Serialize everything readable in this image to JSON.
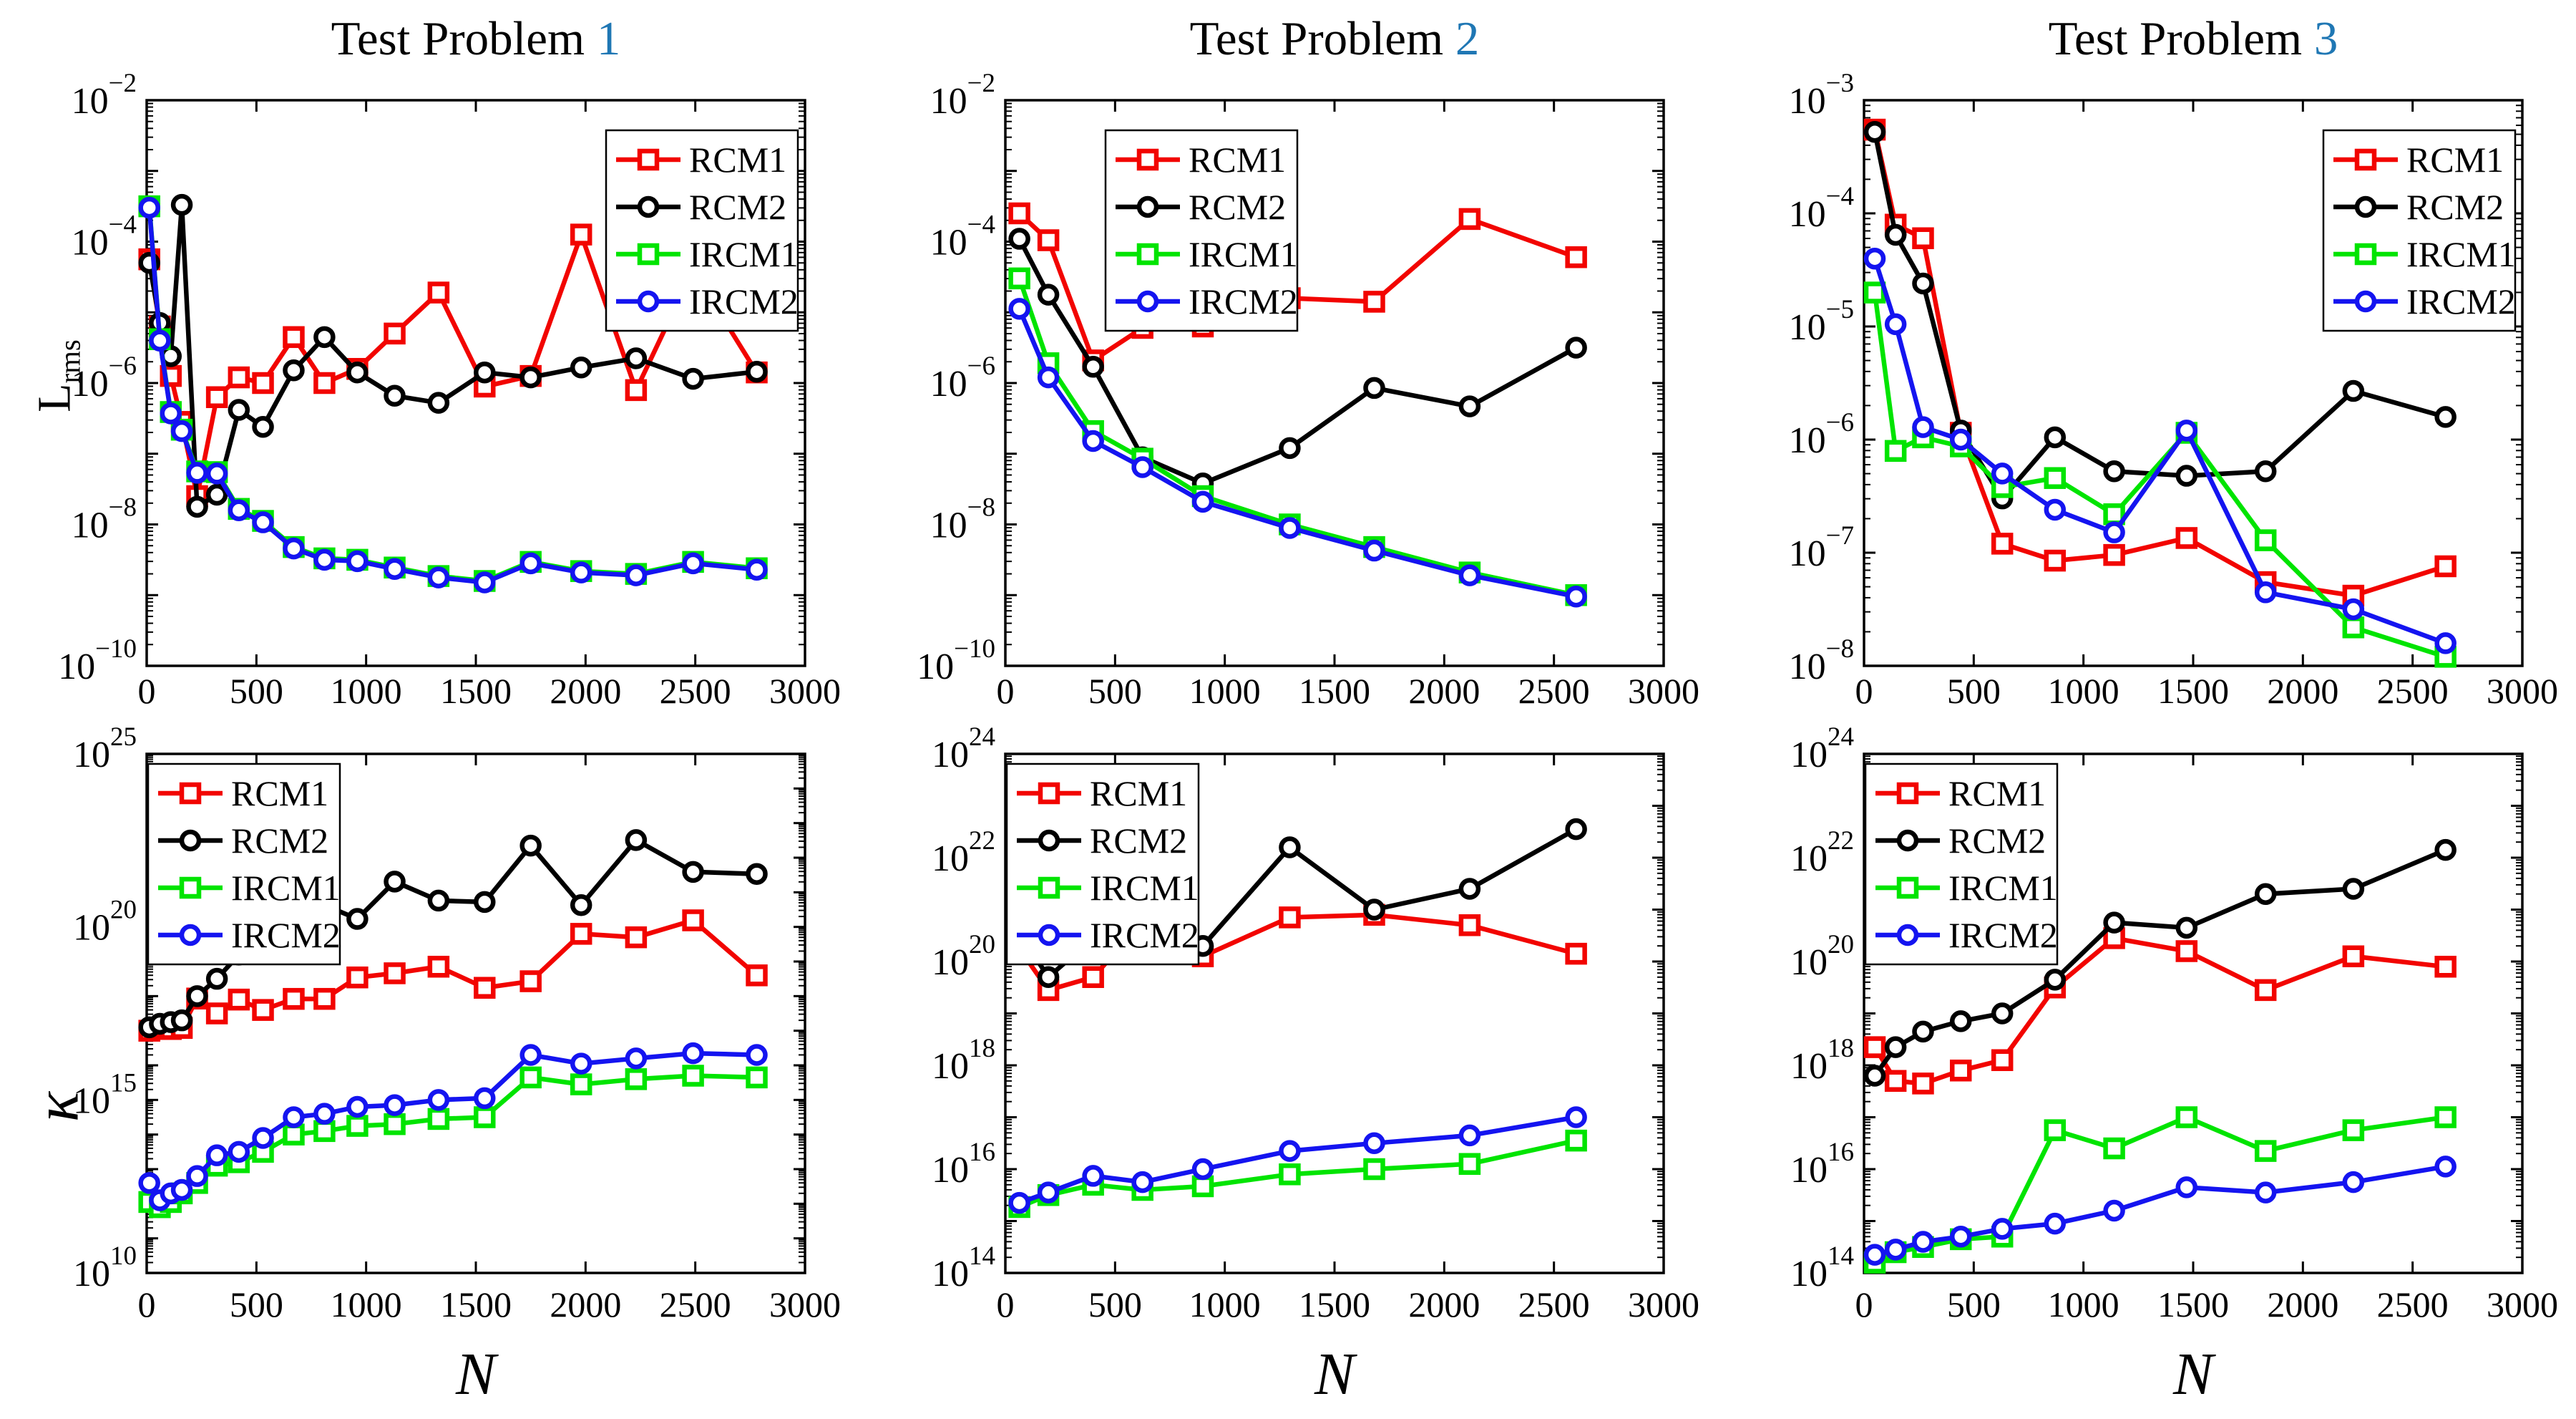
{
  "page": {
    "background": "#ffffff"
  },
  "styles": {
    "axis_color": "#000000",
    "title_accent_color": "#1f77b4",
    "series_colors": {
      "RCM1": "#f20400",
      "RCM2": "#000000",
      "IRCM1": "#00e400",
      "IRCM2": "#1414f0"
    },
    "series_markers": {
      "RCM1": "square",
      "RCM2": "circle",
      "IRCM1": "square",
      "IRCM2": "circle"
    }
  },
  "legend_labels": [
    "RCM1",
    "RCM2",
    "IRCM1",
    "IRCM2"
  ],
  "chart_data": [
    {
      "id": "test-problem-1-lrms",
      "type": "line",
      "title_prefix": "Test Problem ",
      "title_number": "1",
      "ylabel_base": "L",
      "ylabel_sub": "rms",
      "xlabel": "",
      "grid": false,
      "xlim": [
        0,
        3000
      ],
      "x_ticks": [
        0,
        500,
        1000,
        1500,
        2000,
        2500,
        3000
      ],
      "ylim_exp": [
        -10,
        -2
      ],
      "y_labeled_exps": [
        -2,
        -4,
        -6,
        -8,
        -10
      ],
      "legend_pos": "upper right",
      "x": [
        12,
        60,
        110,
        160,
        230,
        320,
        420,
        530,
        670,
        810,
        960,
        1130,
        1330,
        1540,
        1750,
        1980,
        2230,
        2490,
        2780
      ],
      "series": [
        {
          "name": "RCM1",
          "log10_y": [
            -4.25,
            -5.2,
            -5.9,
            -6.55,
            -7.6,
            -6.2,
            -5.92,
            -6.0,
            -5.35,
            -6.0,
            -5.8,
            -5.3,
            -4.72,
            -6.05,
            -5.9,
            -3.9,
            -6.1,
            -4.4,
            -5.85
          ]
        },
        {
          "name": "RCM2",
          "log10_y": [
            -4.3,
            -5.15,
            -5.62,
            -3.48,
            -7.75,
            -7.58,
            -6.38,
            -6.62,
            -5.82,
            -5.35,
            -5.85,
            -6.18,
            -6.28,
            -5.85,
            -5.92,
            -5.78,
            -5.65,
            -5.94,
            -5.84
          ]
        },
        {
          "name": "IRCM1",
          "log10_y": [
            -3.5,
            -5.38,
            -6.41,
            -6.66,
            -7.25,
            -7.26,
            -7.78,
            -7.95,
            -8.32,
            -8.48,
            -8.5,
            -8.61,
            -8.73,
            -8.8,
            -8.53,
            -8.66,
            -8.7,
            -8.53,
            -8.62
          ]
        },
        {
          "name": "IRCM2",
          "log10_y": [
            -3.52,
            -5.4,
            -6.43,
            -6.68,
            -7.27,
            -7.28,
            -7.8,
            -7.97,
            -8.34,
            -8.5,
            -8.52,
            -8.63,
            -8.75,
            -8.82,
            -8.55,
            -8.68,
            -8.72,
            -8.55,
            -8.64
          ]
        }
      ]
    },
    {
      "id": "test-problem-2-lrms",
      "type": "line",
      "title_prefix": "Test Problem ",
      "title_number": "2",
      "ylabel_base": "",
      "ylabel_sub": "",
      "xlabel": "",
      "grid": false,
      "xlim": [
        0,
        3000
      ],
      "x_ticks": [
        0,
        500,
        1000,
        1500,
        2000,
        2500,
        3000
      ],
      "ylim_exp": [
        -10,
        -2
      ],
      "y_labeled_exps": [
        -2,
        -4,
        -6,
        -8,
        -10
      ],
      "legend_pos": "upper left inset",
      "x": [
        64,
        196,
        400,
        625,
        900,
        1296,
        1681,
        2116,
        2601
      ],
      "series": [
        {
          "name": "RCM1",
          "log10_y": [
            -3.6,
            -3.98,
            -5.68,
            -5.22,
            -5.2,
            -4.8,
            -4.85,
            -3.68,
            -4.22
          ]
        },
        {
          "name": "RCM2",
          "log10_y": [
            -3.96,
            -4.75,
            -5.77,
            -7.05,
            -7.42,
            -6.92,
            -6.07,
            -6.33,
            -5.5
          ]
        },
        {
          "name": "IRCM1",
          "log10_y": [
            -4.52,
            -5.72,
            -6.68,
            -7.07,
            -7.6,
            -8.0,
            -8.32,
            -8.68,
            -9.0
          ]
        },
        {
          "name": "IRCM2",
          "log10_y": [
            -4.95,
            -5.92,
            -6.82,
            -7.19,
            -7.68,
            -8.05,
            -8.37,
            -8.72,
            -9.02
          ]
        }
      ]
    },
    {
      "id": "test-problem-3-lrms",
      "type": "line",
      "title_prefix": "Test Problem ",
      "title_number": "3",
      "ylabel_base": "",
      "ylabel_sub": "",
      "xlabel": "",
      "grid": false,
      "xlim": [
        0,
        3000
      ],
      "x_ticks": [
        0,
        500,
        1000,
        1500,
        2000,
        2500,
        3000
      ],
      "ylim_exp": [
        -8,
        -3
      ],
      "y_labeled_exps": [
        -3,
        -4,
        -5,
        -6,
        -7,
        -8
      ],
      "legend_pos": "upper right",
      "x": [
        49,
        144,
        269,
        441,
        630,
        870,
        1140,
        1470,
        1830,
        2230,
        2650
      ],
      "series": [
        {
          "name": "RCM1",
          "log10_y": [
            -3.26,
            -4.1,
            -4.22,
            -5.94,
            -6.92,
            -7.07,
            -7.02,
            -6.87,
            -7.26,
            -7.38,
            -7.12
          ]
        },
        {
          "name": "RCM2",
          "log10_y": [
            -3.28,
            -4.19,
            -4.62,
            -5.92,
            -6.52,
            -5.98,
            -6.28,
            -6.32,
            -6.28,
            -5.57,
            -5.8
          ]
        },
        {
          "name": "IRCM1",
          "log10_y": [
            -4.7,
            -6.1,
            -5.98,
            -6.06,
            -6.42,
            -6.34,
            -6.66,
            -5.94,
            -6.89,
            -7.66,
            -7.92
          ]
        },
        {
          "name": "IRCM2",
          "log10_y": [
            -4.4,
            -4.98,
            -5.89,
            -6.0,
            -6.3,
            -6.62,
            -6.82,
            -5.92,
            -7.35,
            -7.5,
            -7.8
          ]
        }
      ]
    },
    {
      "id": "test-problem-1-kappa",
      "type": "line",
      "title_prefix": "",
      "title_number": "",
      "ylabel_base": "κ",
      "ylabel_sub": "",
      "xlabel": "N",
      "grid": false,
      "xlim": [
        0,
        3000
      ],
      "x_ticks": [
        0,
        500,
        1000,
        1500,
        2000,
        2500,
        3000
      ],
      "ylim_exp": [
        10,
        25
      ],
      "y_labeled_exps": [
        25,
        20,
        15,
        10
      ],
      "legend_pos": "upper left",
      "x": [
        12,
        60,
        110,
        160,
        230,
        320,
        420,
        530,
        670,
        810,
        960,
        1130,
        1330,
        1540,
        1750,
        1980,
        2230,
        2490,
        2780
      ],
      "series": [
        {
          "name": "RCM1",
          "log10_y": [
            17.0,
            17.08,
            17.05,
            17.08,
            17.93,
            17.5,
            17.9,
            17.6,
            17.92,
            17.92,
            18.54,
            18.66,
            18.85,
            18.24,
            18.43,
            19.8,
            19.7,
            20.19,
            18.6
          ]
        },
        {
          "name": "RCM2",
          "log10_y": [
            17.1,
            17.2,
            17.25,
            17.3,
            18.0,
            18.5,
            19.2,
            19.9,
            20.1,
            20.63,
            20.23,
            21.31,
            20.76,
            20.72,
            22.35,
            20.63,
            22.51,
            21.59,
            21.53
          ]
        },
        {
          "name": "IRCM1",
          "log10_y": [
            12.05,
            11.9,
            12.05,
            12.3,
            12.6,
            13.1,
            13.2,
            13.5,
            14.0,
            14.1,
            14.25,
            14.3,
            14.45,
            14.5,
            15.65,
            15.45,
            15.6,
            15.7,
            15.65
          ]
        },
        {
          "name": "IRCM2",
          "log10_y": [
            12.6,
            12.1,
            12.3,
            12.4,
            12.8,
            13.4,
            13.5,
            13.9,
            14.5,
            14.6,
            14.8,
            14.85,
            15.0,
            15.05,
            16.3,
            16.05,
            16.2,
            16.35,
            16.3
          ]
        }
      ]
    },
    {
      "id": "test-problem-2-kappa",
      "type": "line",
      "title_prefix": "",
      "title_number": "",
      "ylabel_base": "",
      "ylabel_sub": "",
      "xlabel": "N",
      "grid": false,
      "xlim": [
        0,
        3000
      ],
      "x_ticks": [
        0,
        500,
        1000,
        1500,
        2000,
        2500,
        3000
      ],
      "ylim_exp": [
        14,
        24
      ],
      "y_labeled_exps": [
        24,
        22,
        20,
        18,
        16,
        14
      ],
      "legend_pos": "upper left",
      "x": [
        64,
        196,
        400,
        625,
        900,
        1296,
        1681,
        2116,
        2601
      ],
      "series": [
        {
          "name": "RCM1",
          "log10_y": [
            20.25,
            19.45,
            19.7,
            20.75,
            20.1,
            20.85,
            20.9,
            20.7,
            20.15
          ]
        },
        {
          "name": "RCM2",
          "log10_y": [
            20.55,
            19.7,
            20.45,
            20.35,
            20.3,
            22.2,
            21.0,
            21.4,
            22.55
          ]
        },
        {
          "name": "IRCM1",
          "log10_y": [
            15.27,
            15.5,
            15.7,
            15.6,
            15.67,
            15.9,
            16.0,
            16.1,
            16.55
          ]
        },
        {
          "name": "IRCM2",
          "log10_y": [
            15.35,
            15.55,
            15.87,
            15.75,
            16.0,
            16.35,
            16.5,
            16.65,
            17.0
          ]
        }
      ]
    },
    {
      "id": "test-problem-3-kappa",
      "type": "line",
      "title_prefix": "",
      "title_number": "",
      "ylabel_base": "",
      "ylabel_sub": "",
      "xlabel": "N",
      "grid": false,
      "xlim": [
        0,
        3000
      ],
      "x_ticks": [
        0,
        500,
        1000,
        1500,
        2000,
        2500,
        3000
      ],
      "ylim_exp": [
        14,
        24
      ],
      "y_labeled_exps": [
        24,
        22,
        20,
        18,
        16,
        14
      ],
      "legend_pos": "upper left",
      "x": [
        49,
        144,
        269,
        441,
        630,
        870,
        1140,
        1470,
        1830,
        2230,
        2650
      ],
      "series": [
        {
          "name": "RCM1",
          "log10_y": [
            18.35,
            17.7,
            17.65,
            17.9,
            18.1,
            19.5,
            20.45,
            20.2,
            19.45,
            20.1,
            19.9
          ]
        },
        {
          "name": "RCM2",
          "log10_y": [
            17.8,
            18.35,
            18.65,
            18.85,
            19.0,
            19.65,
            20.75,
            20.65,
            21.3,
            21.4,
            22.15
          ]
        },
        {
          "name": "IRCM1",
          "log10_y": [
            14.2,
            14.4,
            14.5,
            14.65,
            14.7,
            16.75,
            16.4,
            17.0,
            16.35,
            16.75,
            17.0
          ]
        },
        {
          "name": "IRCM2",
          "log10_y": [
            14.35,
            14.45,
            14.6,
            14.7,
            14.85,
            14.95,
            15.2,
            15.65,
            15.55,
            15.75,
            16.05
          ]
        }
      ]
    }
  ]
}
